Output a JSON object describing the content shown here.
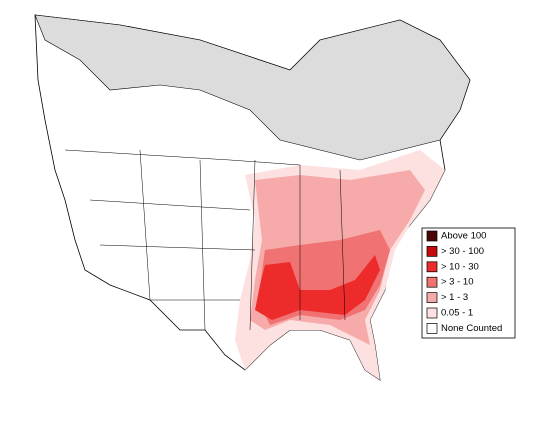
{
  "legend": {
    "items": [
      {
        "label": "Above 100",
        "color": "#4a0505"
      },
      {
        "label": "> 30 - 100",
        "color": "#c40a0a"
      },
      {
        "label": "> 10 - 30",
        "color": "#ee2b2b"
      },
      {
        "label": "> 3 - 10",
        "color": "#f07272"
      },
      {
        "label": "> 1 - 3",
        "color": "#f7aaaa"
      },
      {
        "label": "0.05 - 1",
        "color": "#fde0e0"
      },
      {
        "label": "None Counted",
        "color": "#ffffff"
      }
    ]
  }
}
